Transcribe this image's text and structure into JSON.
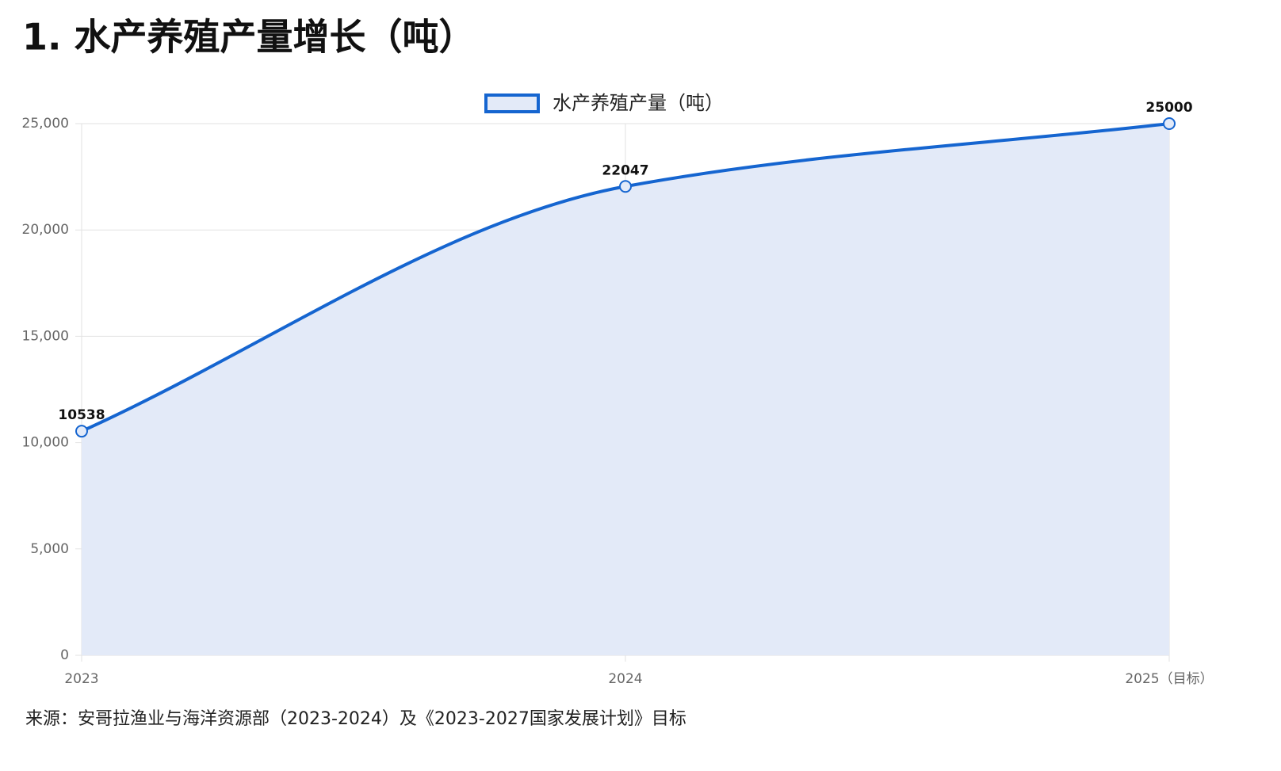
{
  "chart_data": {
    "type": "line",
    "title": "1. 水产养殖产量增长（吨）",
    "categories": [
      "2023",
      "2024",
      "2025（目标）"
    ],
    "series": [
      {
        "name": "水产养殖产量（吨）",
        "color": "#1565d0",
        "fill": "#e3eaf8",
        "values": [
          10538,
          22047,
          25000
        ]
      }
    ],
    "ylim": [
      0,
      25000
    ],
    "yticks": [
      0,
      {
        "value": 5000,
        "label": "5,000"
      },
      {
        "value": 10000,
        "label": "10,000"
      },
      {
        "value": 15000,
        "label": "15,000"
      },
      {
        "value": 20000,
        "label": "20,000"
      },
      {
        "value": 25000,
        "label": "25,000"
      }
    ],
    "grid": true,
    "legend": "top",
    "source": "来源：安哥拉渔业与海洋资源部（2023-2024）及《2023-2027国家发展计划》目标"
  }
}
